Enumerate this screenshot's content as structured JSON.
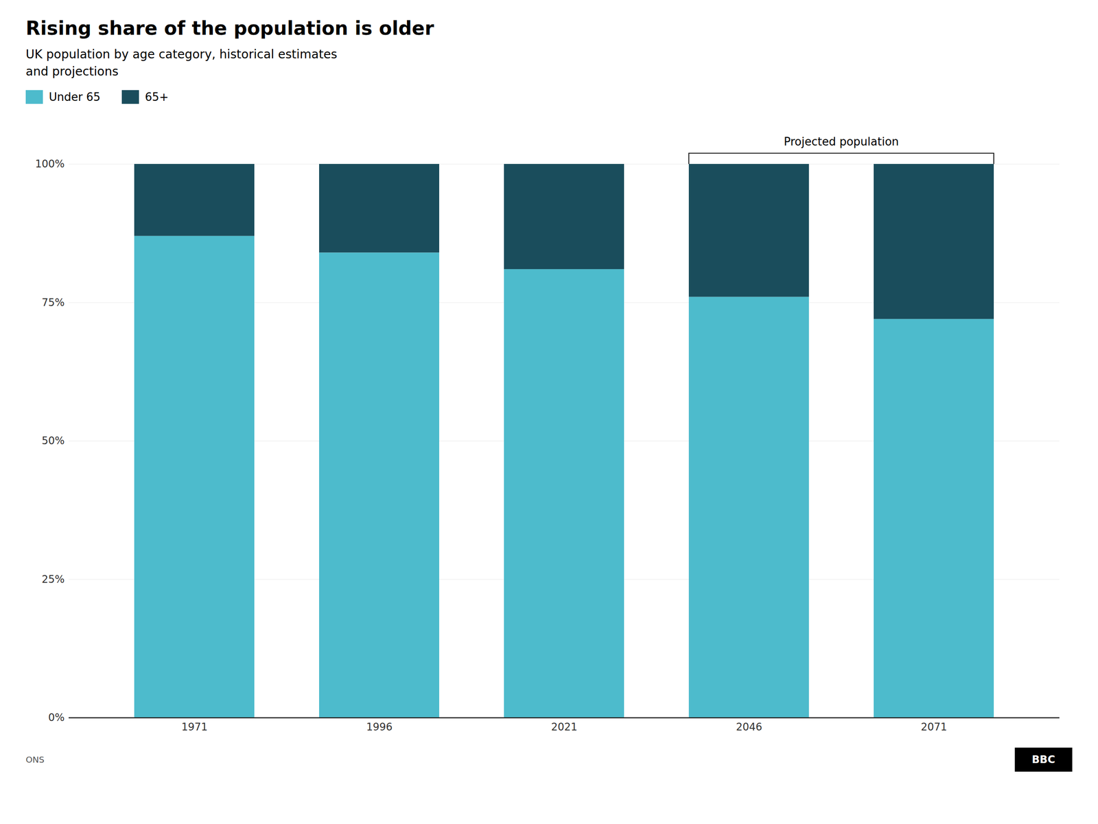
{
  "chart_data": {
    "type": "bar",
    "stacked": true,
    "title": "Rising share of the population is older",
    "subtitle": "UK population by age category, historical estimates\nand projections",
    "source": "ONS",
    "logo": "BBC",
    "annotation": {
      "text": "Projected population",
      "from": "2046",
      "to": "2071"
    },
    "categories": [
      "1971",
      "1996",
      "2021",
      "2046",
      "2071"
    ],
    "series": [
      {
        "name": "Under 65",
        "color": "#4DBBCC",
        "values": [
          87,
          84,
          81,
          76,
          72
        ]
      },
      {
        "name": "65+",
        "color": "#1A4D5C",
        "values": [
          13,
          16,
          19,
          24,
          28
        ]
      }
    ],
    "ylim": [
      0,
      100
    ],
    "yticks": [
      {
        "value": 0,
        "label": "0%"
      },
      {
        "value": 25,
        "label": "25%"
      },
      {
        "value": 50,
        "label": "50%"
      },
      {
        "value": 75,
        "label": "75%"
      },
      {
        "value": 100,
        "label": "100%"
      }
    ],
    "grid": true,
    "legend": "upper left"
  }
}
